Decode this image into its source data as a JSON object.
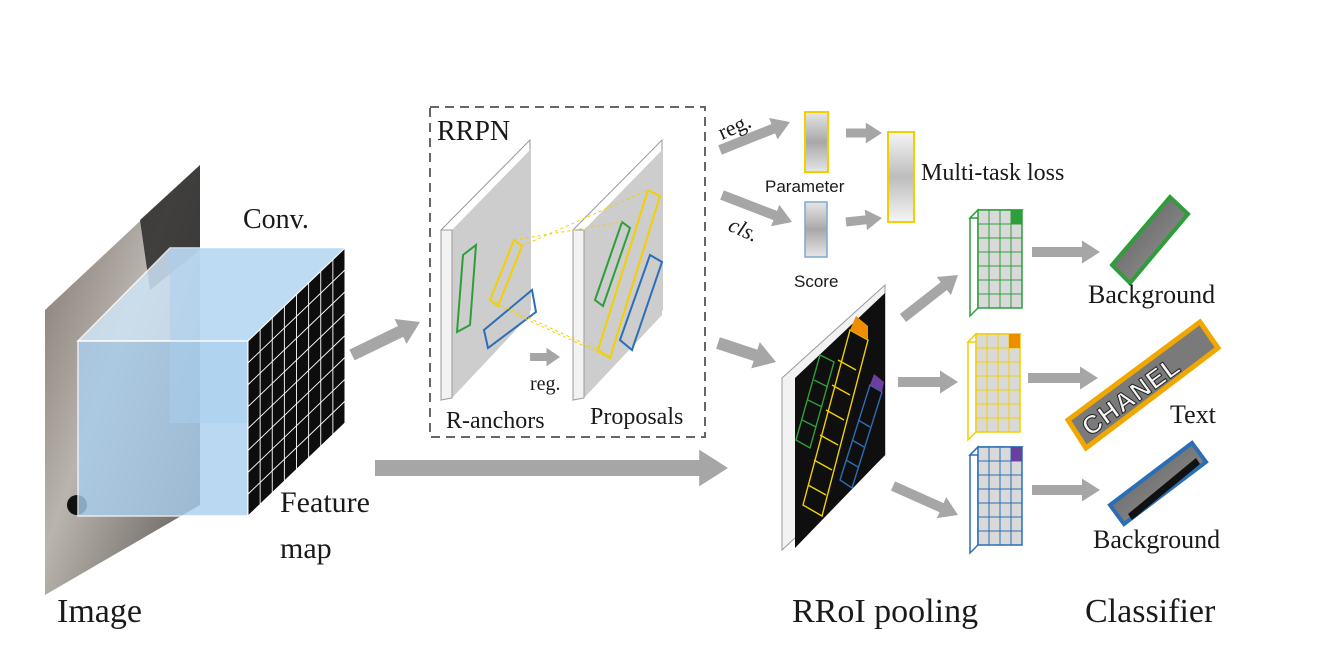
{
  "labels": {
    "image": "Image",
    "conv": "Conv.",
    "feature_map_line1": "Feature",
    "feature_map_line2": "map",
    "rrpn": "RRPN",
    "reg_inner": "reg.",
    "r_anchors": "R-anchors",
    "proposals": "Proposals",
    "reg_top": "reg.",
    "cls": "cls.",
    "parameter": "Parameter",
    "score": "Score",
    "multitask_loss": "Multi-task loss",
    "background_top": "Background",
    "text": "Text",
    "background_bottom": "Background",
    "rroi_pooling": "RRoI pooling",
    "classifier": "Classifier",
    "chanel_crop": "CHANEL"
  },
  "colors": {
    "arrow": "#a6a6a6",
    "green": "#2e9e3a",
    "yellow": "#f2d000",
    "blue": "#2a6fb5",
    "orange": "#f08c00",
    "purple": "#6b3fa0",
    "cube_face": "#a9cfee",
    "dashed_box": "#666666"
  },
  "icons": [
    "arrow-right-icon",
    "chanel-photo-image",
    "feature-map-cube",
    "rroi-feature-map",
    "pooled-grid"
  ]
}
